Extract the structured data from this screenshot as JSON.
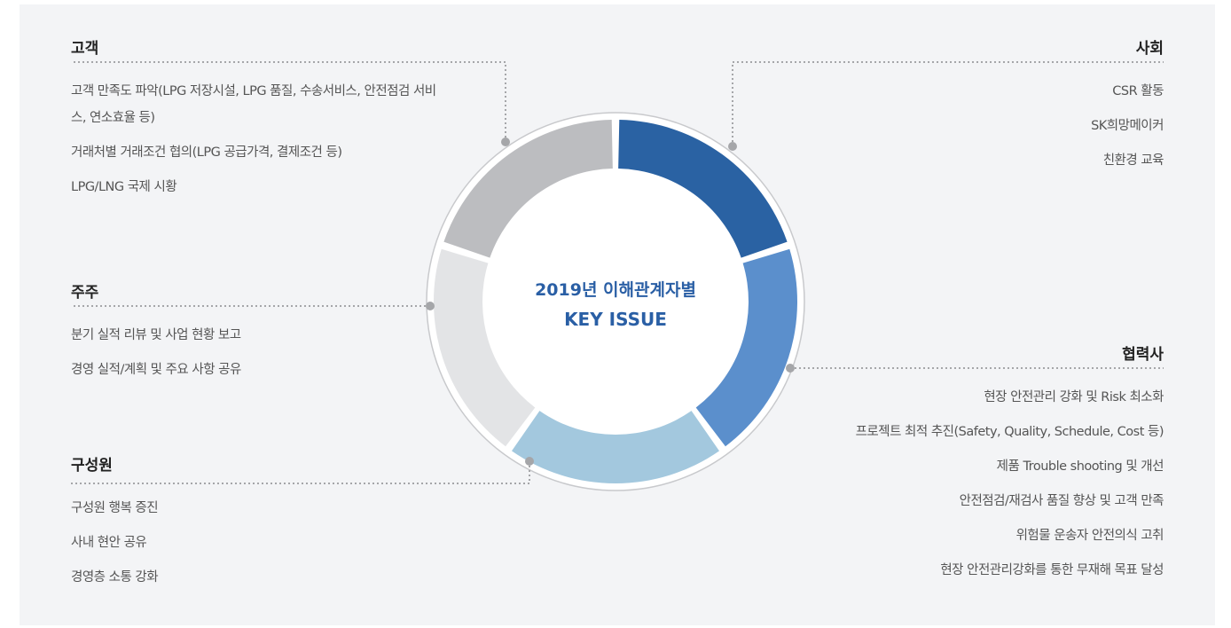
{
  "center": {
    "line1": "2019년 이해관계자별",
    "line2": "KEY ISSUE"
  },
  "groups": [
    {
      "title": "고객",
      "items": [
        "고객 만족도 파악(LPG 저장시설, LPG 품질, 수송서비스, 안전점검 서비스, 연소효율 등)",
        "거래처별 거래조건 협의(LPG 공급가격, 결제조건 등)",
        "LPG/LNG 국제 시황"
      ]
    },
    {
      "title": "사회",
      "items": [
        "CSR 활동",
        "SK희망메이커",
        "친환경 교육"
      ]
    },
    {
      "title": "주주",
      "items": [
        "분기 실적 리뷰 및 사업 현황 보고",
        "경영 실적/계획 및 주요 사항 공유"
      ]
    },
    {
      "title": "협력사",
      "items": [
        "현장 안전관리 강화 및 Risk 최소화",
        "프로젝트 최적 추진(Safety, Quality, Schedule, Cost 등)",
        "제품 Trouble shooting 및 개선",
        "안전점검/재검사 품질 향상 및 고객 만족",
        "위험물 운송자 안전의식 고취",
        "현장 안전관리강화를 통한 무재해 목표 달성"
      ]
    },
    {
      "title": "구성원",
      "items": [
        "구성원 행복 증진",
        "사내 현안 공유",
        "경영층 소통 강화"
      ]
    }
  ]
}
